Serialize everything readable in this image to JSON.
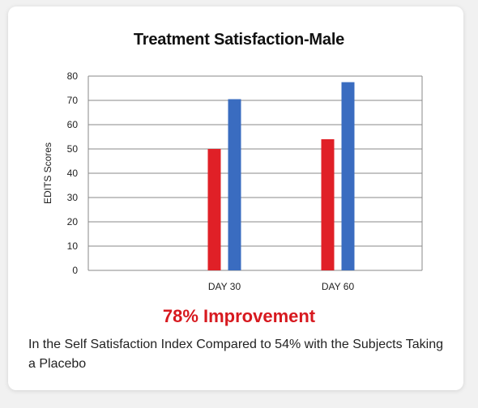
{
  "chart_data": {
    "type": "bar",
    "title": "Treatment Satisfaction-Male",
    "ylabel": "EDITS Scores",
    "xlabel": "",
    "ylim": [
      0,
      80
    ],
    "yticks": [
      0,
      10,
      20,
      30,
      40,
      50,
      60,
      70,
      80
    ],
    "grid": true,
    "legend": "none",
    "categories": [
      "DAY 30",
      "DAY 60"
    ],
    "series": [
      {
        "color": "#e02027",
        "values": [
          50,
          54
        ]
      },
      {
        "color": "#3a6cc0",
        "values": [
          70.5,
          77.5
        ]
      }
    ]
  },
  "headline": "78% Improvement",
  "caption": "In the Self Satisfaction Index Compared to 54% with the Subjects Taking a Placebo",
  "colors": {
    "headline": "#d7191f",
    "grid": "#8a8a8a"
  }
}
